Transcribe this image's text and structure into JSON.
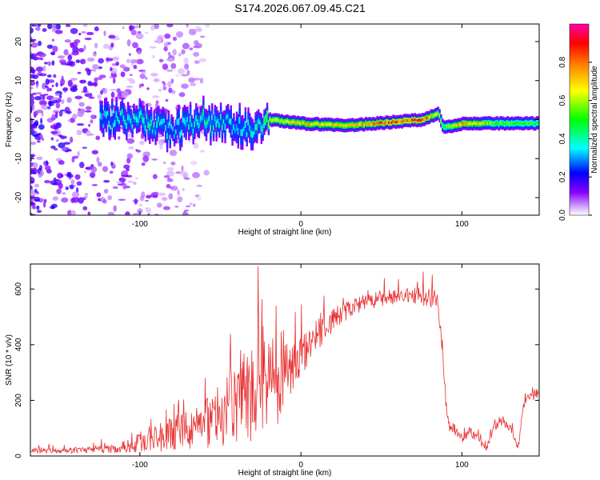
{
  "chart_data": [
    {
      "type": "heatmap",
      "title": "S174.2026.067.09.45.C21",
      "xlabel": "Height of straight line (km)",
      "ylabel": "Frequency (Hz)",
      "xlim": [
        -168,
        148
      ],
      "ylim": [
        -24.5,
        24.5
      ],
      "xticks": [
        -100,
        0,
        100
      ],
      "yticks": [
        -20,
        -10,
        0,
        10,
        20
      ],
      "xtick_labels": [
        "-100",
        "0",
        "100"
      ],
      "ytick_labels": [
        "-20",
        "-10",
        "0",
        "10",
        "20"
      ],
      "colorbar": {
        "label": "Normalized spectral amplitude",
        "range": [
          0,
          1
        ],
        "ticks": [
          0,
          0.2,
          0.4,
          0.6,
          0.8
        ],
        "tick_labels": [
          "0.0",
          "0.2",
          "0.4",
          "0.6",
          "0.8"
        ],
        "colors": [
          "#ffffff",
          "#9900ff",
          "#0000ff",
          "#00ffff",
          "#00ff00",
          "#ffff00",
          "#ff9900",
          "#ff0000",
          "#ff00cc"
        ]
      },
      "ridge": {
        "x": [
          -120,
          -100,
          -80,
          -60,
          -40,
          -25,
          -20,
          0,
          30,
          60,
          75,
          85,
          88,
          100,
          120,
          148
        ],
        "freq": [
          0,
          0,
          -3,
          0,
          -1.5,
          -2.5,
          0,
          -1,
          -1.5,
          -0.5,
          0,
          1.5,
          -2,
          -1,
          -1,
          -1
        ],
        "peak": [
          0.35,
          0.4,
          0.35,
          0.4,
          0.35,
          0.4,
          0.65,
          0.7,
          0.72,
          0.85,
          0.85,
          0.6,
          0.5,
          0.8,
          0.55,
          0.5
        ]
      }
    },
    {
      "type": "line",
      "xlabel": "Height of straight line (km)",
      "ylabel": "SNR (10 * v/v)",
      "xlim": [
        -168,
        148
      ],
      "ylim": [
        0,
        690
      ],
      "xticks": [
        -100,
        0,
        100
      ],
      "yticks": [
        0,
        200,
        400,
        600
      ],
      "xtick_labels": [
        "-100",
        "0",
        "100"
      ],
      "ytick_labels": [
        "0",
        "200",
        "400",
        "600"
      ],
      "series": [
        {
          "name": "SNR",
          "color": "#e83030",
          "x": [
            -168,
            -150,
            -130,
            -115,
            -105,
            -95,
            -85,
            -75,
            -65,
            -55,
            -45,
            -35,
            -28,
            -22,
            -18,
            -14,
            -10,
            -5,
            0,
            5,
            10,
            15,
            20,
            25,
            30,
            40,
            50,
            60,
            70,
            80,
            85,
            88,
            90,
            92,
            95,
            100,
            105,
            110,
            115,
            120,
            125,
            130,
            135,
            138,
            140,
            145,
            148
          ],
          "y": [
            20,
            20,
            22,
            25,
            40,
            60,
            70,
            90,
            100,
            130,
            170,
            220,
            260,
            300,
            280,
            220,
            290,
            330,
            360,
            400,
            430,
            460,
            490,
            510,
            530,
            550,
            565,
            575,
            575,
            575,
            570,
            380,
            200,
            110,
            100,
            60,
            90,
            60,
            25,
            100,
            125,
            100,
            30,
            180,
            200,
            220,
            230
          ],
          "noise": [
            8,
            10,
            12,
            15,
            30,
            45,
            55,
            65,
            80,
            100,
            130,
            180,
            200,
            190,
            160,
            120,
            110,
            90,
            80,
            70,
            60,
            50,
            45,
            40,
            35,
            30,
            30,
            30,
            30,
            40,
            40,
            30,
            25,
            20,
            20,
            15,
            18,
            15,
            10,
            15,
            15,
            15,
            10,
            15,
            15,
            20,
            20
          ]
        }
      ]
    }
  ]
}
